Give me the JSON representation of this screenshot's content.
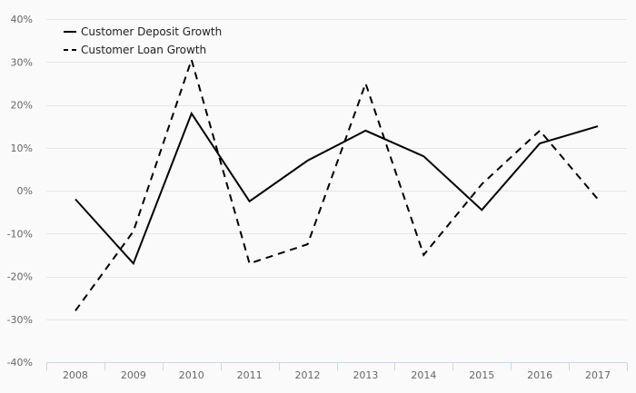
{
  "chart_data": {
    "type": "line",
    "title": "",
    "xlabel": "",
    "ylabel": "",
    "categories": [
      "2008",
      "2009",
      "2010",
      "2011",
      "2012",
      "2013",
      "2014",
      "2015",
      "2016",
      "2017"
    ],
    "ylim": [
      -40,
      40
    ],
    "yticks": [
      40,
      30,
      20,
      10,
      0,
      -10,
      -20,
      -30,
      -40
    ],
    "ytick_labels": [
      "40%",
      "30%",
      "20%",
      "10%",
      "0%",
      "-10%",
      "-20%",
      "-30%",
      "-40%"
    ],
    "grid": true,
    "legend_position": "top-left",
    "series": [
      {
        "name": "Customer Deposit Growth",
        "style": "solid",
        "color": "#000000",
        "values": [
          -2,
          -17,
          18,
          -2.5,
          7,
          14,
          8,
          -4.5,
          11,
          15
        ]
      },
      {
        "name": "Customer Loan Growth",
        "style": "dashed",
        "color": "#000000",
        "values": [
          -28,
          -9.5,
          30.5,
          -17,
          -12.5,
          25,
          -15,
          1.5,
          14,
          -2
        ]
      }
    ]
  }
}
